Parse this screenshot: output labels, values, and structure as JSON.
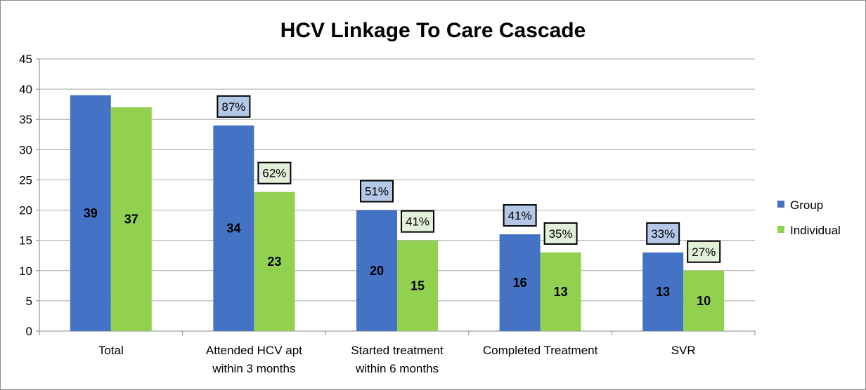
{
  "chart_data": {
    "type": "bar",
    "title": "HCV Linkage To Care Cascade",
    "categories": [
      [
        "Total"
      ],
      [
        "Attended HCV apt",
        "within 3 months"
      ],
      [
        "Started treatment",
        "within 6 months"
      ],
      [
        "Completed Treatment"
      ],
      [
        "SVR"
      ]
    ],
    "series": [
      {
        "name": "Group",
        "color": "#4472C4",
        "label_fill": "#B4C7E7",
        "values": [
          39,
          34,
          20,
          16,
          13
        ],
        "percent_labels": [
          null,
          "87%",
          "51%",
          "41%",
          "33%"
        ]
      },
      {
        "name": "Individual",
        "color": "#92D050",
        "label_fill": "#E2F0D9",
        "values": [
          37,
          23,
          15,
          13,
          10
        ],
        "percent_labels": [
          null,
          "62%",
          "41%",
          "35%",
          "27%"
        ]
      }
    ],
    "ylim": [
      0,
      45
    ],
    "yticks": [
      0,
      5,
      10,
      15,
      20,
      25,
      30,
      35,
      40,
      45
    ],
    "grid": true,
    "legend": "right",
    "xlabel": "",
    "ylabel": ""
  }
}
